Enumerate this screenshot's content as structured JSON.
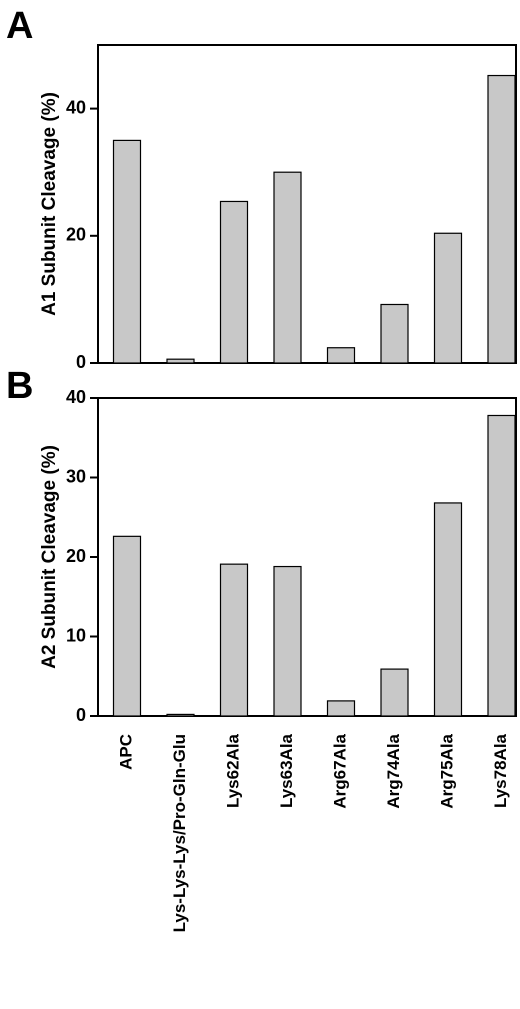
{
  "categories": [
    "APC",
    "Lys-Lys-Lys/Pro-Gln-Glu",
    "Lys62Ala",
    "Lys63Ala",
    "Arg67Ala",
    "Arg74Ala",
    "Arg75Ala",
    "Lys78Ala"
  ],
  "bar_color": "#c8c8c8",
  "chart_data": [
    {
      "type": "bar",
      "panel": "A",
      "categories": [
        "APC",
        "Lys-Lys-Lys/Pro-Gln-Glu",
        "Lys62Ala",
        "Lys63Ala",
        "Arg67Ala",
        "Arg74Ala",
        "Arg75Ala",
        "Lys78Ala"
      ],
      "values": [
        35,
        0.6,
        25.4,
        30,
        2.4,
        9.2,
        20.4,
        45.2
      ],
      "ylabel": "A1 Subunit Cleavage (%)",
      "ylim": [
        0,
        50
      ],
      "yticks": [
        0,
        20,
        40
      ],
      "grid": false
    },
    {
      "type": "bar",
      "panel": "B",
      "categories": [
        "APC",
        "Lys-Lys-Lys/Pro-Gln-Glu",
        "Lys62Ala",
        "Lys63Ala",
        "Arg67Ala",
        "Arg74Ala",
        "Arg75Ala",
        "Lys78Ala"
      ],
      "values": [
        22.6,
        0.2,
        19.1,
        18.8,
        1.9,
        5.9,
        26.8,
        37.8
      ],
      "ylabel": "A2 Subunit Cleavage (%)",
      "ylim": [
        0,
        40
      ],
      "yticks": [
        0,
        10,
        20,
        30,
        40
      ],
      "grid": false
    }
  ]
}
